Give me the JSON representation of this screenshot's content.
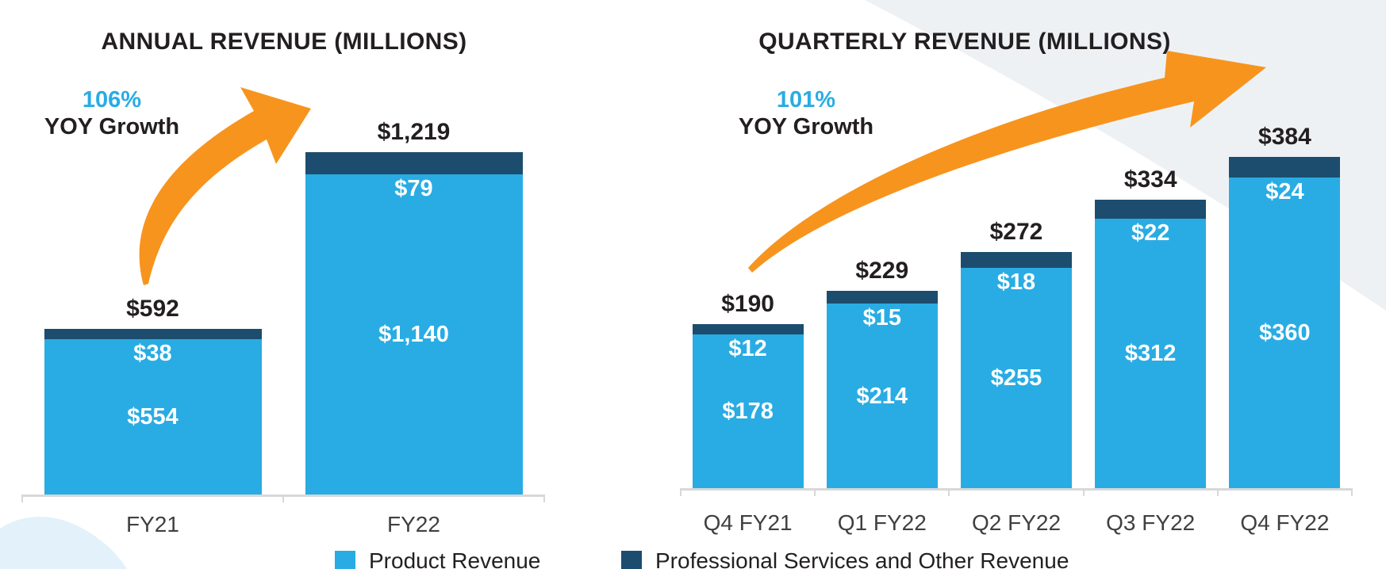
{
  "page": {
    "background": "#FFFFFF"
  },
  "colors": {
    "product_blue": "#29ACE3",
    "services_navy": "#1C4D6E",
    "growth_orange": "#F7941E",
    "heading_text": "#231F20",
    "axis_label_text": "#404040",
    "bar_value_text": "#FFFFFF",
    "axis_line": "#D8D8D8",
    "deco_circle": "#EEF1F4",
    "deco_blob": "#E2F1FA"
  },
  "legend": {
    "items": [
      {
        "id": "product",
        "label": "Product Revenue"
      },
      {
        "id": "services",
        "label": "Professional Services and Other Revenue"
      }
    ]
  },
  "chart_data": [
    {
      "id": "annual",
      "type": "bar",
      "stacked": true,
      "title": "ANNUAL REVENUE (MILLIONS)",
      "growth_callout": {
        "percent": "106%",
        "label": "YOY Growth"
      },
      "categories": [
        "FY21",
        "FY22"
      ],
      "series": [
        {
          "name": "Product Revenue",
          "values": [
            554,
            1140
          ],
          "labels": [
            "$554",
            "$1,140"
          ]
        },
        {
          "name": "Professional Services and Other Revenue",
          "values": [
            38,
            79
          ],
          "labels": [
            "$38",
            "$79"
          ]
        }
      ],
      "totals": {
        "values": [
          592,
          1219
        ],
        "labels": [
          "$592",
          "$1,219"
        ]
      },
      "ylim": [
        0,
        1219
      ],
      "grid": false,
      "legend_position": "bottom"
    },
    {
      "id": "quarterly",
      "type": "bar",
      "stacked": true,
      "title": "QUARTERLY REVENUE (MILLIONS)",
      "growth_callout": {
        "percent": "101%",
        "label": "YOY Growth"
      },
      "categories": [
        "Q4 FY21",
        "Q1 FY22",
        "Q2 FY22",
        "Q3 FY22",
        "Q4 FY22"
      ],
      "series": [
        {
          "name": "Product Revenue",
          "values": [
            178,
            214,
            255,
            312,
            360
          ],
          "labels": [
            "$178",
            "$214",
            "$255",
            "$312",
            "$360"
          ]
        },
        {
          "name": "Professional Services and Other Revenue",
          "values": [
            12,
            15,
            18,
            22,
            24
          ],
          "labels": [
            "$12",
            "$15",
            "$18",
            "$22",
            "$24"
          ]
        }
      ],
      "totals": {
        "values": [
          190,
          229,
          272,
          334,
          384
        ],
        "labels": [
          "$190",
          "$229",
          "$272",
          "$334",
          "$384"
        ]
      },
      "ylim": [
        0,
        384
      ],
      "grid": false,
      "legend_position": "bottom"
    }
  ]
}
